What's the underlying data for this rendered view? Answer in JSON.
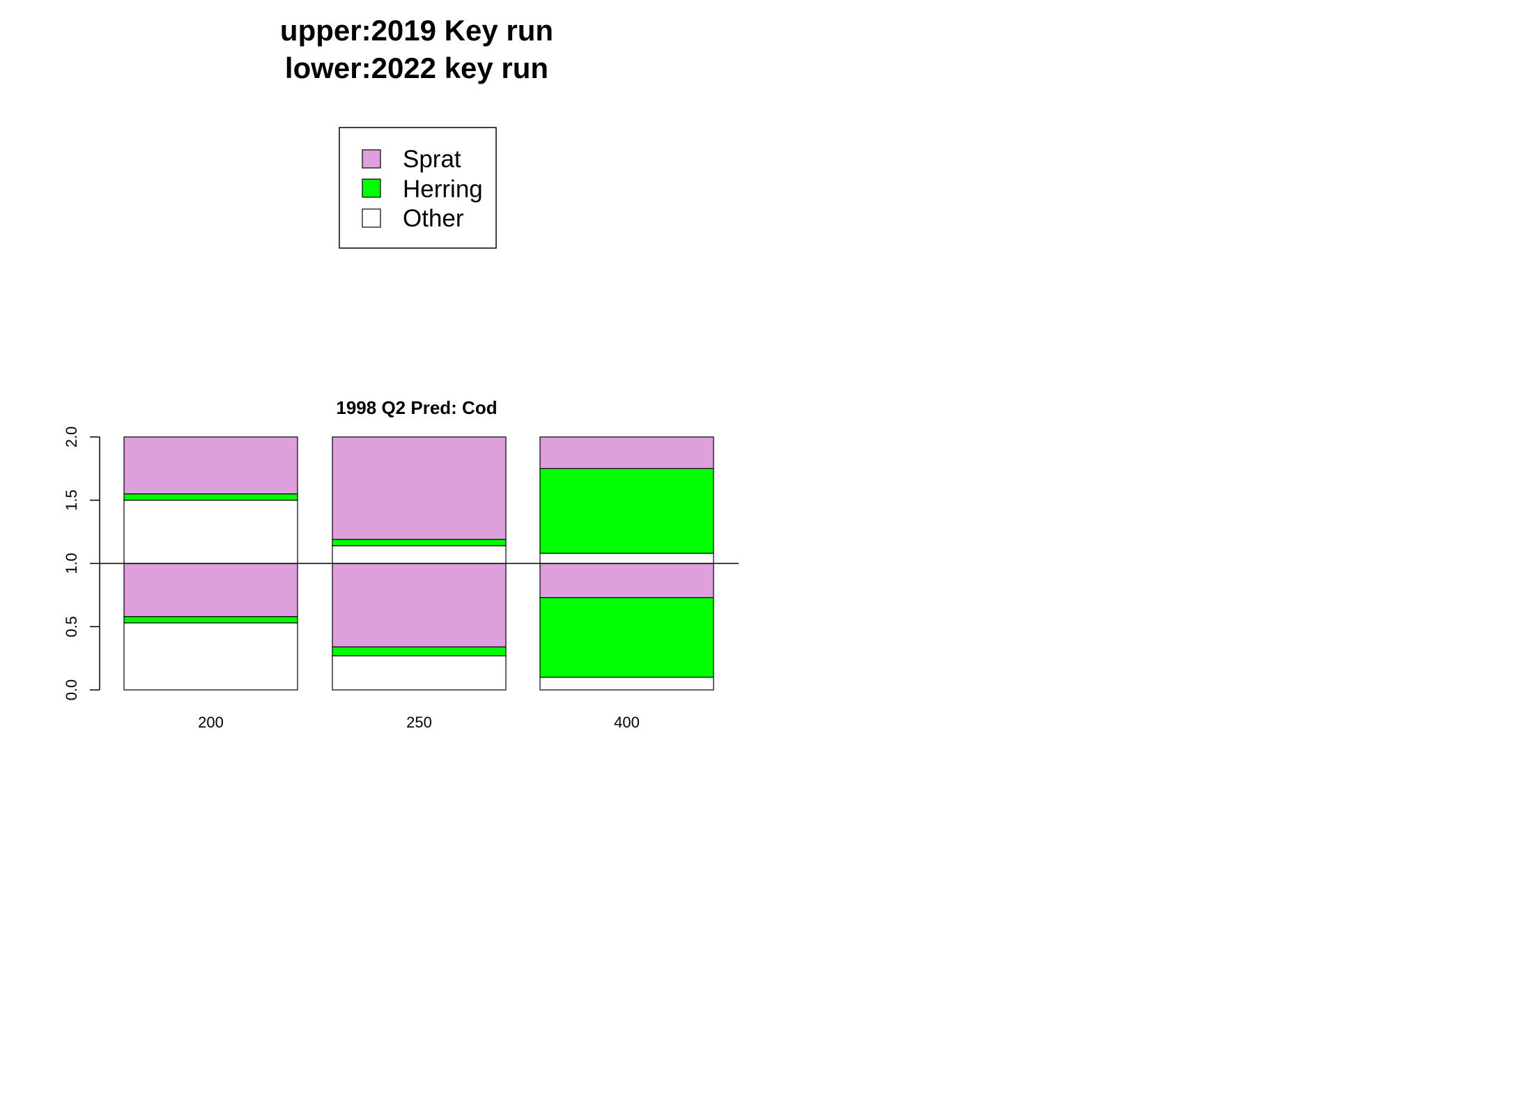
{
  "title": {
    "line1": "upper:2019 Key run",
    "line2": "lower:2022 key run"
  },
  "legend": {
    "placement": "top-center",
    "items": [
      {
        "label": "Sprat",
        "color": "#DDA0DD"
      },
      {
        "label": "Herring",
        "color": "#00FF00"
      },
      {
        "label": "Other",
        "color": "#FFFFFF"
      }
    ]
  },
  "chart_data": {
    "type": "bar",
    "stacked": true,
    "title": "1998 Q2  Pred: Cod",
    "xlabel": "",
    "ylabel": "",
    "ylim": [
      0,
      2
    ],
    "yticks": [
      "0.0",
      "0.5",
      "1.0",
      "1.5",
      "2.0"
    ],
    "reference_line": 1.0,
    "categories": [
      "200",
      "250",
      "400"
    ],
    "stack_order_bottom_to_top": [
      "Other",
      "Herring",
      "Sprat"
    ],
    "upper": {
      "label": "2019 Key run",
      "series": [
        {
          "name": "Other",
          "values": [
            0.5,
            0.14,
            0.08
          ]
        },
        {
          "name": "Herring",
          "values": [
            0.05,
            0.05,
            0.67
          ]
        },
        {
          "name": "Sprat",
          "values": [
            0.45,
            0.81,
            0.25
          ]
        }
      ]
    },
    "lower": {
      "label": "2022 key run",
      "series": [
        {
          "name": "Other",
          "values": [
            0.53,
            0.27,
            0.1
          ]
        },
        {
          "name": "Herring",
          "values": [
            0.05,
            0.07,
            0.63
          ]
        },
        {
          "name": "Sprat",
          "values": [
            0.42,
            0.66,
            0.27
          ]
        }
      ]
    },
    "colors": {
      "Sprat": "#DDA0DD",
      "Herring": "#00FF00",
      "Other": "#FFFFFF"
    }
  }
}
